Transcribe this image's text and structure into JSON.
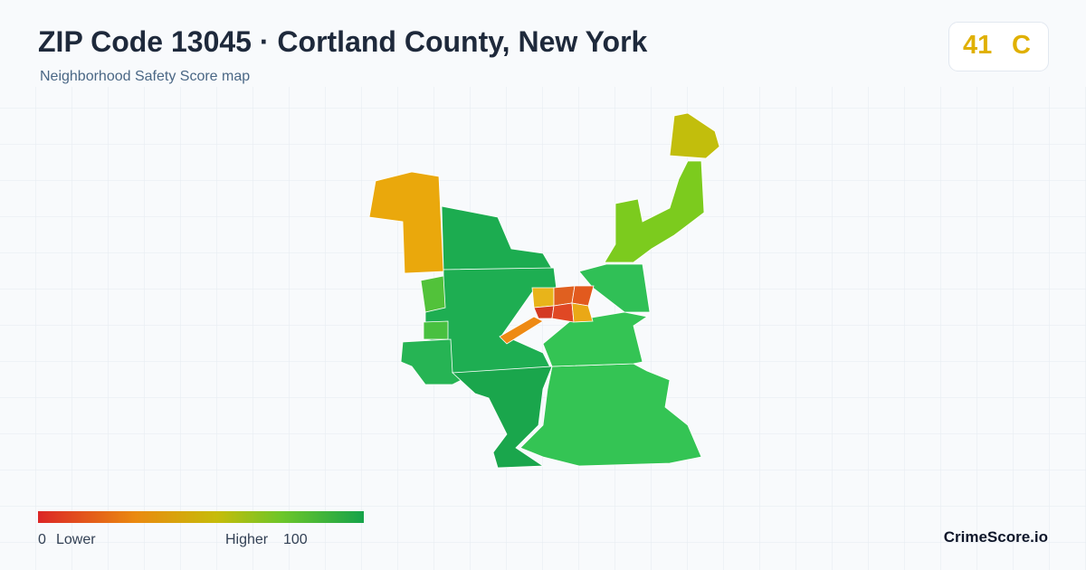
{
  "header": {
    "title": "ZIP Code 13045 · Cortland County, New York",
    "subtitle": "Neighborhood Safety Score map"
  },
  "score": {
    "value": "41",
    "grade": "C"
  },
  "legend": {
    "min": "0",
    "min_label": "Lower",
    "max_label": "Higher",
    "max": "100"
  },
  "brand": "CrimeScore.io"
}
